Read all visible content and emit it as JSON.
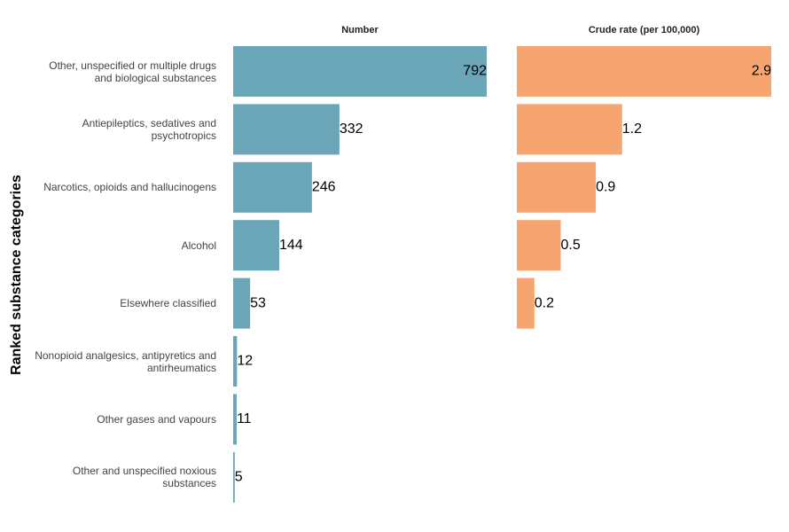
{
  "chart_data": {
    "type": "bar",
    "y_label": "Ranked substance categories",
    "categories": [
      "Other, unspecified or multiple drugs\nand biological substances",
      "Antiepileptics, sedatives and\npsychotropics",
      "Narcotics, opioids and hallucinogens",
      "Alcohol",
      "Elsewhere classified",
      "Nonopioid analgesics, antipyretics and\nantirheumatics",
      "Other gases and vapours",
      "Other and unspecified noxious\nsubstances"
    ],
    "panels": [
      {
        "title": "Number",
        "color": "#6aa5b8",
        "xlim": [
          0,
          792
        ],
        "values": [
          792,
          332,
          246,
          144,
          53,
          12,
          11,
          5
        ]
      },
      {
        "title": "Crude rate (per 100,000)",
        "color": "#f6a570",
        "xlim": [
          0,
          2.9
        ],
        "values": [
          2.9,
          1.2,
          0.9,
          0.5,
          0.2,
          null,
          null,
          null
        ]
      }
    ]
  }
}
